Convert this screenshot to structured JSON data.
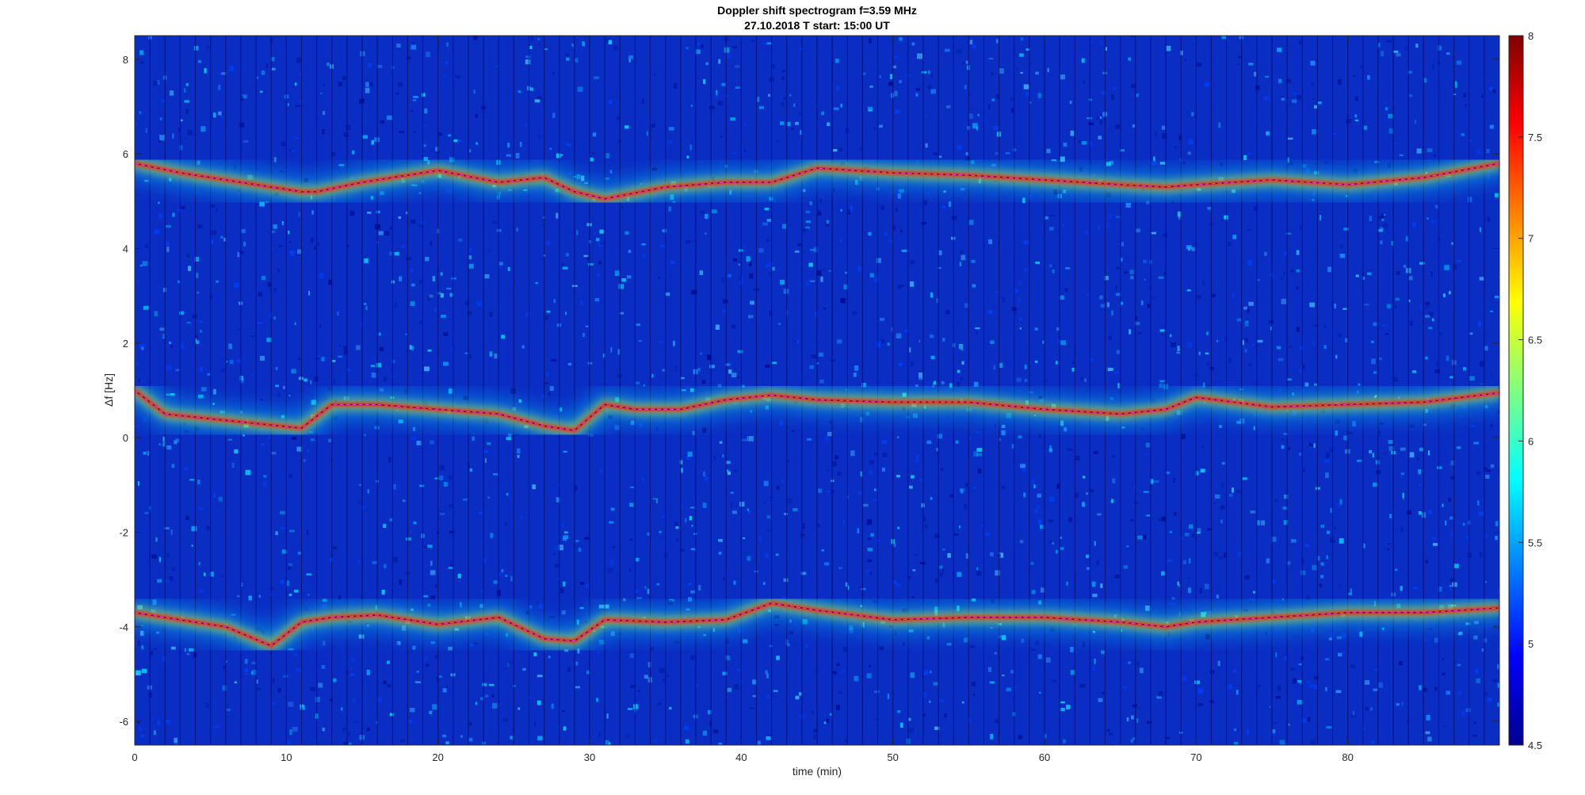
{
  "chart_data": {
    "type": "heatmap",
    "title": "Doppler shift spectrogram f=3.59 MHz",
    "subtitle": "27.10.2018   T start: 15:00 UT",
    "xlabel": "time (min)",
    "ylabel": "Δf [Hz]",
    "xlim": [
      0,
      90
    ],
    "ylim": [
      -6.5,
      8.5
    ],
    "xticks": [
      0,
      10,
      20,
      30,
      40,
      50,
      60,
      70,
      80
    ],
    "yticks": [
      -6,
      -4,
      -2,
      0,
      2,
      4,
      6,
      8
    ],
    "colorbar": {
      "colormap": "jet",
      "range": [
        4.5,
        8
      ],
      "ticks": [
        4.5,
        5,
        5.5,
        6,
        6.5,
        7,
        7.5,
        8
      ]
    },
    "series": [
      {
        "x": [
          0,
          3,
          6,
          9,
          11,
          12,
          15,
          20,
          24,
          27,
          29,
          31,
          35,
          39,
          42,
          45,
          50,
          55,
          60,
          65,
          68,
          70,
          75,
          80,
          85,
          90
        ],
        "y": [
          5.8,
          5.6,
          5.45,
          5.3,
          5.2,
          5.2,
          5.4,
          5.65,
          5.4,
          5.5,
          5.2,
          5.05,
          5.3,
          5.4,
          5.4,
          5.7,
          5.6,
          5.55,
          5.45,
          5.35,
          5.3,
          5.35,
          5.45,
          5.35,
          5.5,
          5.8
        ]
      },
      {
        "x": [
          0,
          2,
          5,
          8,
          11,
          13,
          16,
          20,
          24,
          27,
          29,
          31,
          33,
          36,
          39,
          42,
          45,
          50,
          55,
          60,
          65,
          68,
          70,
          75,
          80,
          85,
          90
        ],
        "y": [
          1.0,
          0.5,
          0.4,
          0.3,
          0.2,
          0.7,
          0.7,
          0.6,
          0.5,
          0.25,
          0.15,
          0.7,
          0.6,
          0.6,
          0.8,
          0.9,
          0.8,
          0.75,
          0.75,
          0.6,
          0.5,
          0.6,
          0.85,
          0.65,
          0.7,
          0.75,
          0.95
        ]
      },
      {
        "x": [
          0,
          3,
          6,
          9,
          11,
          13,
          16,
          20,
          24,
          27,
          29,
          31,
          35,
          39,
          42,
          45,
          50,
          55,
          60,
          65,
          68,
          70,
          75,
          80,
          85,
          90
        ],
        "y": [
          -3.7,
          -3.85,
          -4.0,
          -4.4,
          -3.9,
          -3.8,
          -3.75,
          -3.95,
          -3.8,
          -4.25,
          -4.3,
          -3.85,
          -3.9,
          -3.85,
          -3.5,
          -3.65,
          -3.85,
          -3.8,
          -3.8,
          -3.9,
          -4.0,
          -3.9,
          -3.8,
          -3.7,
          -3.7,
          -3.6
        ]
      }
    ]
  }
}
